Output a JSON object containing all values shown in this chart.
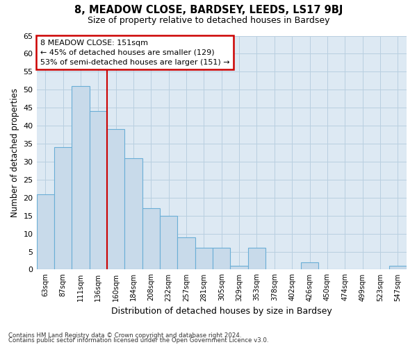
{
  "title1": "8, MEADOW CLOSE, BARDSEY, LEEDS, LS17 9BJ",
  "title2": "Size of property relative to detached houses in Bardsey",
  "xlabel": "Distribution of detached houses by size in Bardsey",
  "ylabel": "Number of detached properties",
  "categories": [
    "63sqm",
    "87sqm",
    "111sqm",
    "136sqm",
    "160sqm",
    "184sqm",
    "208sqm",
    "232sqm",
    "257sqm",
    "281sqm",
    "305sqm",
    "329sqm",
    "353sqm",
    "378sqm",
    "402sqm",
    "426sqm",
    "450sqm",
    "474sqm",
    "499sqm",
    "523sqm",
    "547sqm"
  ],
  "values": [
    21,
    34,
    51,
    44,
    39,
    31,
    17,
    15,
    9,
    6,
    6,
    1,
    6,
    0,
    0,
    2,
    0,
    0,
    0,
    0,
    1
  ],
  "bar_color": "#c8daea",
  "bar_edge_color": "#6aaed6",
  "grid_color": "#b8cfe0",
  "background_color": "#dde9f3",
  "vline_x_index": 4,
  "annotation_title": "8 MEADOW CLOSE: 151sqm",
  "annotation_line1": "← 45% of detached houses are smaller (129)",
  "annotation_line2": "53% of semi-detached houses are larger (151) →",
  "annotation_box_color": "#ffffff",
  "annotation_border_color": "#cc0000",
  "vline_color": "#cc0000",
  "footer1": "Contains HM Land Registry data © Crown copyright and database right 2024.",
  "footer2": "Contains public sector information licensed under the Open Government Licence v3.0.",
  "ylim": [
    0,
    65
  ],
  "yticks": [
    0,
    5,
    10,
    15,
    20,
    25,
    30,
    35,
    40,
    45,
    50,
    55,
    60,
    65
  ]
}
